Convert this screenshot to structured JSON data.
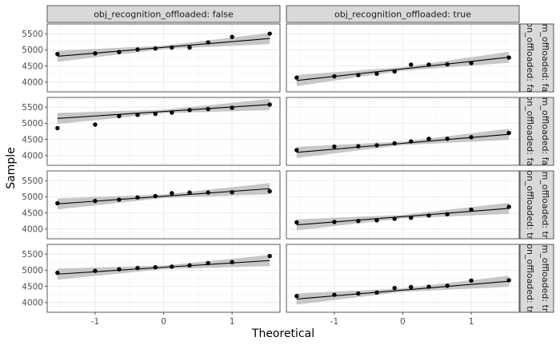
{
  "chart_data": {
    "type": "scatter",
    "plot_kind": "qq-plot faceted grid with reference line and confidence band",
    "xlabel": "Theoretical",
    "ylabel": "Sample",
    "col_strips": [
      "obj_recognition_offloaded: false",
      "obj_recognition_offloaded: true"
    ],
    "row_strips": [
      "ation_offloaded: false",
      "ation_offloaded: false",
      "ation_offloaded: true",
      "ation_offloaded: true"
    ],
    "row_strips_visible": [
      "m_offloaded: fa",
      "m_offloaded: fa",
      "m_offloaded: tr",
      "m_offloaded: tr"
    ],
    "xlim": [
      -1.7,
      1.7
    ],
    "ylim": [
      3700,
      5800
    ],
    "x_ticks": [
      -1,
      0,
      1
    ],
    "x_tick_labels": [
      "-1",
      "0",
      "1"
    ],
    "y_ticks": [
      4000,
      4500,
      5000,
      5500
    ],
    "y_tick_labels": [
      "4000",
      "4500",
      "5000",
      "5500"
    ],
    "grid": true,
    "x_theoretical": [
      -1.55,
      -1.0,
      -0.65,
      -0.38,
      -0.12,
      0.12,
      0.38,
      0.65,
      1.0,
      1.55
    ],
    "panels": [
      {
        "row": 0,
        "col": 0,
        "y": [
          4870,
          4890,
          4930,
          5010,
          5040,
          5070,
          5070,
          5230,
          5400,
          5500
        ],
        "line": [
          4800,
          5350
        ]
      },
      {
        "row": 0,
        "col": 1,
        "y": [
          4140,
          4180,
          4220,
          4260,
          4330,
          4540,
          4540,
          4550,
          4590,
          4760
        ],
        "line": [
          4050,
          4770
        ]
      },
      {
        "row": 1,
        "col": 0,
        "y": [
          4850,
          4960,
          5220,
          5260,
          5290,
          5330,
          5410,
          5440,
          5480,
          5580
        ],
        "line": [
          5150,
          5580
        ]
      },
      {
        "row": 1,
        "col": 1,
        "y": [
          4170,
          4280,
          4290,
          4320,
          4380,
          4440,
          4520,
          4520,
          4570,
          4700
        ],
        "line": [
          4100,
          4660
        ]
      },
      {
        "row": 2,
        "col": 0,
        "y": [
          4800,
          4870,
          4910,
          4980,
          5020,
          5110,
          5130,
          5130,
          5140,
          5170
        ],
        "line": [
          4780,
          5250
        ]
      },
      {
        "row": 2,
        "col": 1,
        "y": [
          4210,
          4220,
          4250,
          4270,
          4320,
          4350,
          4420,
          4460,
          4600,
          4690
        ],
        "line": [
          4130,
          4640
        ]
      },
      {
        "row": 3,
        "col": 0,
        "y": [
          4920,
          4980,
          5030,
          5070,
          5090,
          5110,
          5150,
          5220,
          5250,
          5440
        ],
        "line": [
          4880,
          5300
        ]
      },
      {
        "row": 3,
        "col": 1,
        "y": [
          4200,
          4240,
          4280,
          4310,
          4450,
          4480,
          4490,
          4520,
          4680,
          4690
        ],
        "line": [
          4110,
          4660
        ]
      }
    ]
  }
}
